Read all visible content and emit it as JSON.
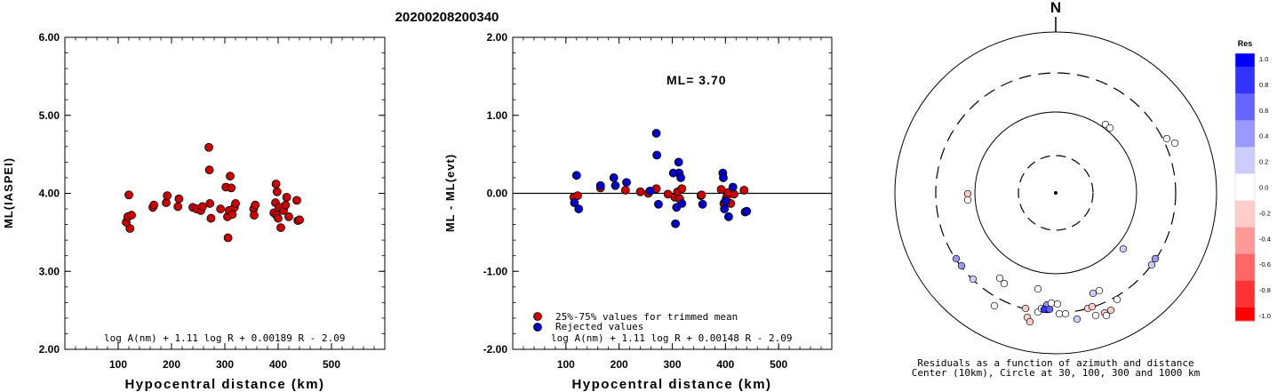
{
  "title": "20200208200340",
  "chart_data": [
    {
      "type": "scatter",
      "xlabel": "Hypocentral distance (km)",
      "ylabel": "ML(IASPEI)",
      "xlim": [
        0,
        600
      ],
      "ylim": [
        2.0,
        6.0
      ],
      "xticks": [
        "100",
        "200",
        "300",
        "400",
        "500"
      ],
      "yticks": [
        "2.00",
        "3.00",
        "4.00",
        "5.00",
        "6.00"
      ],
      "formula": "log A(nm) + 1.11 log R + 0.00189 R - 2.09",
      "color": "#cc0000",
      "points": [
        [
          115,
          3.63
        ],
        [
          118,
          3.7
        ],
        [
          120,
          3.98
        ],
        [
          122,
          3.55
        ],
        [
          125,
          3.72
        ],
        [
          165,
          3.82
        ],
        [
          167,
          3.85
        ],
        [
          190,
          3.88
        ],
        [
          192,
          3.97
        ],
        [
          212,
          3.83
        ],
        [
          214,
          3.93
        ],
        [
          240,
          3.82
        ],
        [
          247,
          3.8
        ],
        [
          255,
          3.78
        ],
        [
          258,
          3.83
        ],
        [
          270,
          4.59
        ],
        [
          271,
          4.3
        ],
        [
          272,
          3.87
        ],
        [
          274,
          3.68
        ],
        [
          292,
          3.8
        ],
        [
          302,
          4.08
        ],
        [
          305,
          3.7
        ],
        [
          306,
          3.43
        ],
        [
          308,
          3.78
        ],
        [
          310,
          4.22
        ],
        [
          312,
          4.07
        ],
        [
          314,
          3.73
        ],
        [
          318,
          3.82
        ],
        [
          320,
          3.87
        ],
        [
          354,
          3.8
        ],
        [
          355,
          3.72
        ],
        [
          357,
          3.85
        ],
        [
          392,
          3.75
        ],
        [
          395,
          3.88
        ],
        [
          396,
          4.12
        ],
        [
          397,
          3.72
        ],
        [
          398,
          4.02
        ],
        [
          400,
          3.68
        ],
        [
          402,
          3.82
        ],
        [
          405,
          3.56
        ],
        [
          410,
          3.78
        ],
        [
          414,
          3.85
        ],
        [
          416,
          3.95
        ],
        [
          420,
          3.7
        ],
        [
          435,
          3.91
        ],
        [
          437,
          3.65
        ],
        [
          440,
          3.66
        ]
      ]
    },
    {
      "type": "scatter",
      "xlabel": "Hypocentral distance (km)",
      "ylabel": "ML - ML(evt)",
      "xlim": [
        0,
        600
      ],
      "ylim": [
        -2.0,
        2.0
      ],
      "xticks": [
        "100",
        "200",
        "300",
        "400",
        "500"
      ],
      "yticks": [
        "-2.00",
        "-1.00",
        "0.00",
        "1.00",
        "2.00"
      ],
      "annotation": "ML= 3.70",
      "formula": "log A(nm) + 1.11 log R + 0.00148 R - 2.09",
      "legend": [
        {
          "label": "25%-75% values for trimmed mean",
          "color": "#cc0000"
        },
        {
          "label": "Rejected values",
          "color": "#0000cc"
        }
      ],
      "series": [
        {
          "name": "25%-75% values for trimmed mean",
          "color": "#cc0000",
          "points": [
            [
              115,
              -0.05
            ],
            [
              122,
              -0.03
            ],
            [
              165,
              0.07
            ],
            [
              212,
              0.04
            ],
            [
              240,
              0.02
            ],
            [
              255,
              0.0
            ],
            [
              270,
              0.06
            ],
            [
              292,
              -0.01
            ],
            [
              305,
              -0.05
            ],
            [
              310,
              0.02
            ],
            [
              314,
              -0.07
            ],
            [
              318,
              0.06
            ],
            [
              354,
              -0.03
            ],
            [
              355,
              -0.02
            ],
            [
              392,
              0.05
            ],
            [
              397,
              -0.13
            ],
            [
              402,
              -0.05
            ],
            [
              405,
              0.01
            ],
            [
              410,
              -0.13
            ],
            [
              416,
              -0.01
            ],
            [
              435,
              0.04
            ]
          ]
        },
        {
          "name": "Rejected values",
          "color": "#0000cc",
          "points": [
            [
              116,
              -0.12
            ],
            [
              120,
              0.23
            ],
            [
              124,
              -0.2
            ],
            [
              165,
              0.1
            ],
            [
              190,
              0.2
            ],
            [
              193,
              0.1
            ],
            [
              214,
              0.14
            ],
            [
              258,
              0.03
            ],
            [
              270,
              0.77
            ],
            [
              271,
              0.49
            ],
            [
              274,
              -0.14
            ],
            [
              302,
              0.26
            ],
            [
              306,
              -0.39
            ],
            [
              308,
              -0.18
            ],
            [
              312,
              0.4
            ],
            [
              313,
              0.26
            ],
            [
              316,
              0.2
            ],
            [
              318,
              -0.13
            ],
            [
              357,
              -0.14
            ],
            [
              395,
              0.26
            ],
            [
              396,
              0.2
            ],
            [
              398,
              -0.2
            ],
            [
              400,
              -0.1
            ],
            [
              406,
              -0.3
            ],
            [
              414,
              0.08
            ],
            [
              437,
              -0.24
            ],
            [
              440,
              -0.23
            ]
          ]
        }
      ]
    },
    {
      "type": "polar-scatter",
      "north_label": "N",
      "caption_1": "Residuals as a function of azimuth and distance",
      "caption_2": "Center (10km), Circle at 30, 100, 300 and 1000 km",
      "colorbar": {
        "title": "Res",
        "min": -1.0,
        "max": 1.0,
        "ticks": [
          "1.0",
          "0.8",
          "0.6",
          "0.4",
          "0.2",
          "0.0",
          "-0.2",
          "-0.4",
          "-0.6",
          "-0.8",
          "-1.0"
        ],
        "colors": [
          "#0000ff",
          "#3333ff",
          "#6666ff",
          "#9999ff",
          "#ccccff",
          "#ffffff",
          "#ffcccc",
          "#ff9999",
          "#ff6666",
          "#ff3333",
          "#ff0000"
        ]
      },
      "stations": [
        [
          1244,
          140,
          0.0
        ],
        [
          1249,
          144,
          0.0
        ],
        [
          1313,
          156,
          0.0
        ],
        [
          1322,
          161,
          0.0
        ],
        [
          1089,
          218,
          -0.1
        ],
        [
          1089,
          225,
          0.0
        ],
        [
          1264,
          280,
          0.3
        ],
        [
          1300,
          291,
          0.35
        ],
        [
          1296,
          298,
          0.3
        ],
        [
          1076,
          291,
          0.4
        ],
        [
          1082,
          299,
          0.35
        ],
        [
          1095,
          314,
          0.3
        ],
        [
          1125,
          313,
          0.0
        ],
        [
          1130,
          319,
          0.0
        ],
        [
          1119,
          344,
          0.0
        ],
        [
          1168,
          325,
          0.0
        ],
        [
          1154,
          347,
          -0.1
        ],
        [
          1156,
          357,
          -0.2
        ],
        [
          1159,
          362,
          -0.2
        ],
        [
          1168,
          351,
          0.0
        ],
        [
          1172,
          347,
          0.0
        ],
        [
          1178,
          343,
          0.4
        ],
        [
          1175,
          348,
          0.8
        ],
        [
          1181,
          348,
          0.6
        ],
        [
          1183,
          341,
          0.0
        ],
        [
          1190,
          342,
          0.0
        ],
        [
          1192,
          353,
          0.0
        ],
        [
          1199,
          353,
          0.0
        ],
        [
          1212,
          359,
          0.2
        ],
        [
          1224,
          347,
          -0.2
        ],
        [
          1229,
          345,
          -0.1
        ],
        [
          1230,
          330,
          0.15
        ],
        [
          1237,
          327,
          0.0
        ],
        [
          1233,
          355,
          0.0
        ],
        [
          1243,
          352,
          -0.1
        ],
        [
          1245,
          355,
          0.0
        ],
        [
          1250,
          349,
          -0.1
        ],
        [
          1257,
          337,
          0.0
        ]
      ]
    }
  ]
}
